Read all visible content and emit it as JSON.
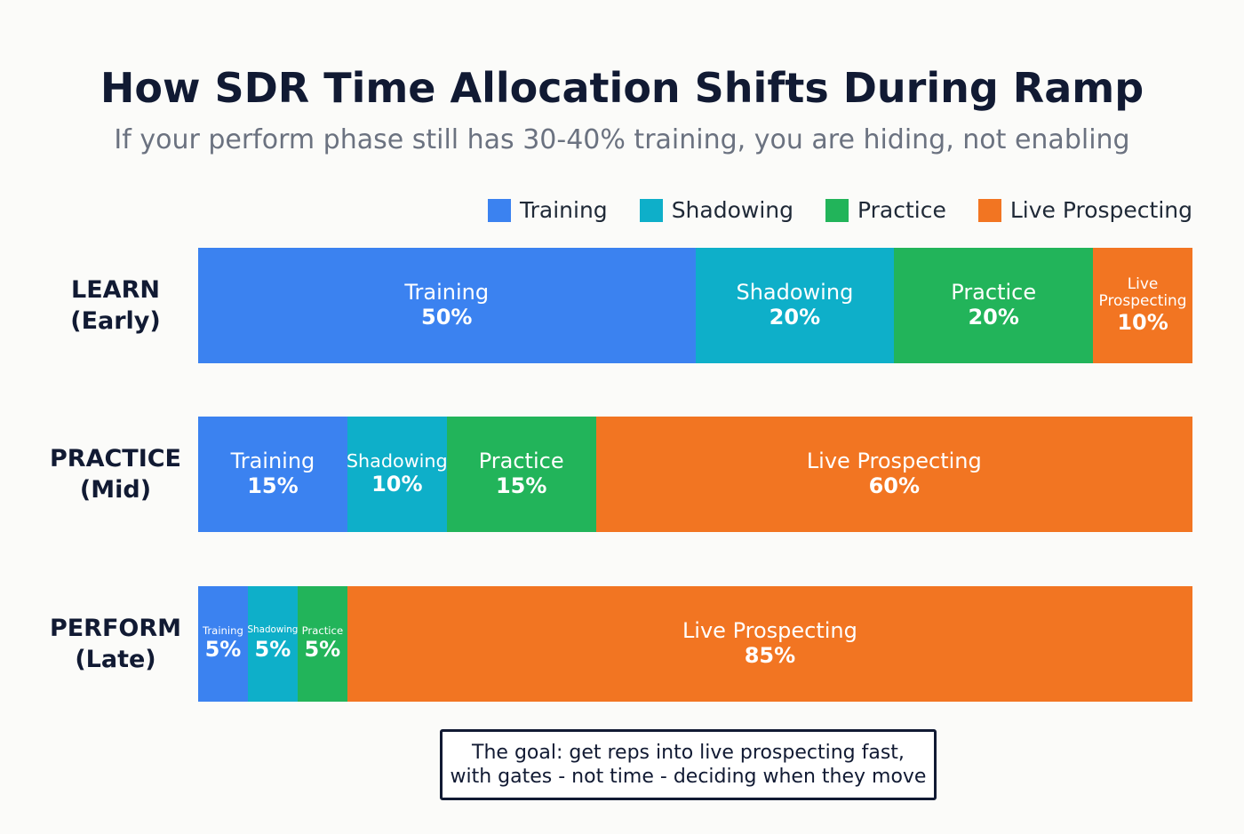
{
  "chart_data": {
    "type": "stacked-bar-horizontal",
    "title": "How SDR Time Allocation Shifts During Ramp",
    "subtitle": "If your perform phase still has 30-40% training, you are hiding, not enabling",
    "categories": [
      "LEARN\n(Early)",
      "PRACTICE\n(Mid)",
      "PERFORM\n(Late)"
    ],
    "series": [
      {
        "name": "Training",
        "color": "#3b82f0",
        "values": [
          50,
          15,
          5
        ],
        "value_labels": [
          "50%",
          "15%",
          "5%"
        ]
      },
      {
        "name": "Shadowing",
        "color": "#0eafc9",
        "values": [
          20,
          10,
          5
        ],
        "value_labels": [
          "20%",
          "10%",
          "5%"
        ]
      },
      {
        "name": "Practice",
        "color": "#22b45a",
        "values": [
          20,
          15,
          5
        ],
        "value_labels": [
          "20%",
          "15%",
          "5%"
        ]
      },
      {
        "name": "Live Prospecting",
        "color": "#f27522",
        "values": [
          10,
          60,
          85
        ],
        "value_labels": [
          "10%",
          "60%",
          "85%"
        ]
      }
    ],
    "xlim": [
      0,
      100
    ],
    "legend": "top-right",
    "note": "The goal: get reps into live prospecting fast,\nwith gates - not time - deciding when they move"
  }
}
